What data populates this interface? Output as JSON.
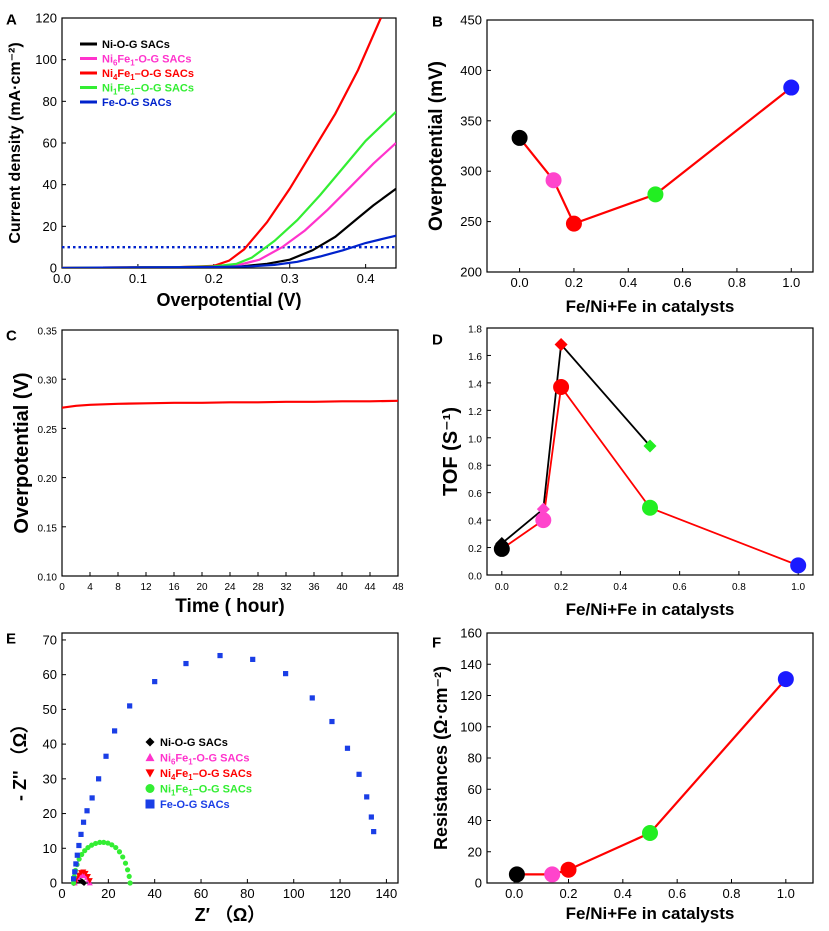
{
  "figure": {
    "panel_letters": [
      "A",
      "B",
      "C",
      "D",
      "E",
      "F"
    ]
  },
  "chart_data": [
    {
      "panel": "A",
      "type": "line",
      "title": "",
      "xlabel": "Overpotential (V)",
      "ylabel": "Current density (mA·cm⁻²)",
      "xlim": [
        0.0,
        0.44
      ],
      "ylim": [
        0,
        120
      ],
      "xticks": [
        "0.0",
        "0.1",
        "0.2",
        "0.3",
        "0.4"
      ],
      "yticks": [
        "0",
        "20",
        "40",
        "60",
        "80",
        "100",
        "120"
      ],
      "x_tick_values": [
        0.0,
        0.1,
        0.2,
        0.3,
        0.4
      ],
      "y_tick_values": [
        0,
        20,
        40,
        60,
        80,
        100,
        120
      ],
      "legend_position": "top-left",
      "series": [
        {
          "name": "Ni-O-G SACs",
          "legend": [
            [
              "Ni-O-G SACs",
              ""
            ]
          ],
          "color": "#000000",
          "x": [
            0.0,
            0.05,
            0.1,
            0.15,
            0.2,
            0.24,
            0.27,
            0.3,
            0.33,
            0.36,
            0.39,
            0.41,
            0.44
          ],
          "y": [
            0,
            0.2,
            0.3,
            0.4,
            0.5,
            0.9,
            2.0,
            4.0,
            8.5,
            15,
            24,
            30,
            38
          ]
        },
        {
          "name": "Ni6Fe1-O-G SACs",
          "legend": [
            [
              "Ni",
              ""
            ],
            [
              "6",
              "sub"
            ],
            [
              "Fe",
              ""
            ],
            [
              "1",
              "sub"
            ],
            [
              "-O-G SACs",
              ""
            ]
          ],
          "color": "#ff33cc",
          "x": [
            0.0,
            0.05,
            0.1,
            0.15,
            0.2,
            0.23,
            0.26,
            0.29,
            0.32,
            0.35,
            0.38,
            0.41,
            0.44
          ],
          "y": [
            0,
            0.2,
            0.3,
            0.4,
            0.6,
            1.2,
            4,
            10,
            18,
            28,
            39,
            50,
            60
          ]
        },
        {
          "name": "Ni4Fe1–O-G SACs",
          "legend": [
            [
              "Ni",
              ""
            ],
            [
              "4",
              "sub"
            ],
            [
              "Fe",
              ""
            ],
            [
              "1",
              "sub"
            ],
            [
              "–O-G SACs",
              ""
            ]
          ],
          "color": "#ff0000",
          "x": [
            0.0,
            0.05,
            0.1,
            0.15,
            0.2,
            0.22,
            0.24,
            0.27,
            0.3,
            0.33,
            0.36,
            0.39,
            0.42
          ],
          "y": [
            0,
            0.2,
            0.3,
            0.4,
            1.0,
            3.5,
            9,
            22,
            38,
            56,
            74,
            95,
            120
          ]
        },
        {
          "name": "Ni1Fe1–O-G SACs",
          "legend": [
            [
              "Ni",
              ""
            ],
            [
              "1",
              "sub"
            ],
            [
              "Fe",
              ""
            ],
            [
              "1",
              "sub"
            ],
            [
              "–O-G SACs",
              ""
            ]
          ],
          "color": "#33ee33",
          "x": [
            0.0,
            0.05,
            0.1,
            0.15,
            0.2,
            0.23,
            0.25,
            0.28,
            0.31,
            0.34,
            0.37,
            0.4,
            0.44
          ],
          "y": [
            0,
            0.2,
            0.3,
            0.4,
            0.8,
            2.0,
            5,
            13,
            23,
            35,
            48,
            61,
            75
          ]
        },
        {
          "name": "Fe-O-G SACs",
          "legend": [
            [
              "Fe-O-G SACs",
              ""
            ]
          ],
          "color": "#0022cc",
          "x": [
            0.0,
            0.05,
            0.1,
            0.15,
            0.2,
            0.25,
            0.28,
            0.31,
            0.34,
            0.37,
            0.4,
            0.44
          ],
          "y": [
            0,
            0.2,
            0.3,
            0.4,
            0.5,
            0.8,
            1.5,
            3.0,
            5.5,
            8.5,
            12,
            15.5
          ]
        }
      ],
      "reference_line": {
        "y": 10,
        "style": "dotted",
        "color": "#0022cc"
      }
    },
    {
      "panel": "B",
      "type": "line",
      "title": "",
      "xlabel": "Fe/Ni+Fe in catalysts",
      "ylabel": "Overpotential (mV)",
      "xlim": [
        -0.12,
        1.08
      ],
      "ylim": [
        200,
        450
      ],
      "xticks": [
        "0.0",
        "0.2",
        "0.4",
        "0.6",
        "0.8",
        "1.0"
      ],
      "yticks": [
        "200",
        "250",
        "300",
        "350",
        "400",
        "450"
      ],
      "x_tick_values": [
        0.0,
        0.2,
        0.4,
        0.6,
        0.8,
        1.0
      ],
      "y_tick_values": [
        200,
        250,
        300,
        350,
        400,
        450
      ],
      "line_color": "#ff0000",
      "points": [
        {
          "x": 0.0,
          "y": 333,
          "color": "#000000"
        },
        {
          "x": 0.125,
          "y": 291,
          "color": "#ff44cc"
        },
        {
          "x": 0.2,
          "y": 248,
          "color": "#ff0000"
        },
        {
          "x": 0.5,
          "y": 277,
          "color": "#22ee22"
        },
        {
          "x": 1.0,
          "y": 383,
          "color": "#1a1aff"
        }
      ]
    },
    {
      "panel": "C",
      "type": "line",
      "title": "",
      "xlabel": "Time ( hour)",
      "ylabel": "Overpotential (V)",
      "xlim": [
        0,
        48
      ],
      "ylim": [
        0.1,
        0.35
      ],
      "xticks": [
        "0",
        "4",
        "8",
        "12",
        "16",
        "20",
        "24",
        "28",
        "32",
        "36",
        "40",
        "44",
        "48"
      ],
      "yticks": [
        "0.10",
        "0.15",
        "0.20",
        "0.25",
        "0.30",
        "0.35"
      ],
      "x_tick_values": [
        0,
        4,
        8,
        12,
        16,
        20,
        24,
        28,
        32,
        36,
        40,
        44,
        48
      ],
      "y_tick_values": [
        0.1,
        0.15,
        0.2,
        0.25,
        0.3,
        0.35
      ],
      "series": [
        {
          "name": "Ni4Fe1–O-G SACs",
          "color": "#ff0000",
          "x": [
            0,
            2,
            4,
            8,
            12,
            16,
            20,
            24,
            28,
            32,
            36,
            40,
            44,
            48
          ],
          "y": [
            0.271,
            0.273,
            0.274,
            0.275,
            0.2755,
            0.276,
            0.276,
            0.2765,
            0.2765,
            0.277,
            0.277,
            0.2775,
            0.2775,
            0.278
          ]
        }
      ]
    },
    {
      "panel": "D",
      "type": "line",
      "title": "",
      "xlabel": "Fe/Ni+Fe in catalysts",
      "ylabel": "TOF (S⁻¹)",
      "xlim": [
        -0.05,
        1.05
      ],
      "ylim": [
        0.0,
        1.8
      ],
      "xticks": [
        "0.0",
        "0.2",
        "0.4",
        "0.6",
        "0.8",
        "1.0"
      ],
      "yticks": [
        "0.0",
        "0.2",
        "0.4",
        "0.6",
        "0.8",
        "1.0",
        "1.2",
        "1.4",
        "1.6",
        "1.8"
      ],
      "x_tick_values": [
        0.0,
        0.2,
        0.4,
        0.6,
        0.8,
        1.0
      ],
      "y_tick_values": [
        0.0,
        0.2,
        0.4,
        0.6,
        0.8,
        1.0,
        1.2,
        1.4,
        1.6,
        1.8
      ],
      "series": [
        {
          "name": "TOF (diamonds)",
          "marker": "diamond",
          "line_color": "#000000",
          "points": [
            {
              "x": 0.0,
              "y": 0.23,
              "color": "#000000"
            },
            {
              "x": 0.14,
              "y": 0.48,
              "color": "#ff44cc"
            },
            {
              "x": 0.2,
              "y": 1.68,
              "color": "#ff0000"
            },
            {
              "x": 0.5,
              "y": 0.94,
              "color": "#22ee22"
            }
          ]
        },
        {
          "name": "TOF (circles)",
          "marker": "circle",
          "line_color": "#ff0000",
          "points": [
            {
              "x": 0.0,
              "y": 0.19,
              "color": "#000000"
            },
            {
              "x": 0.14,
              "y": 0.4,
              "color": "#ff44cc"
            },
            {
              "x": 0.2,
              "y": 1.37,
              "color": "#ff0000"
            },
            {
              "x": 0.5,
              "y": 0.49,
              "color": "#22ee22"
            },
            {
              "x": 1.0,
              "y": 0.07,
              "color": "#1a1aff"
            }
          ]
        }
      ]
    },
    {
      "panel": "E",
      "type": "scatter",
      "title": "",
      "xlabel": "Z′ （Ω）",
      "ylabel": "- Z'' （Ω）",
      "xlim": [
        0,
        145
      ],
      "ylim": [
        0,
        72
      ],
      "xticks": [
        "0",
        "20",
        "40",
        "60",
        "80",
        "100",
        "120",
        "140"
      ],
      "yticks": [
        "0",
        "10",
        "20",
        "30",
        "40",
        "50",
        "60",
        "70"
      ],
      "x_tick_values": [
        0,
        20,
        40,
        60,
        80,
        100,
        120,
        140
      ],
      "y_tick_values": [
        0,
        10,
        20,
        30,
        40,
        50,
        60,
        70
      ],
      "legend_position": "center-left",
      "series": [
        {
          "name": "Ni-O-G SACs",
          "legend": [
            [
              "Ni-O-G SACs",
              ""
            ]
          ],
          "marker": "diamond",
          "color": "#000000",
          "x": [
            5.0,
            5.5,
            6.2,
            7.0,
            7.8,
            8.5,
            9.0,
            9.5
          ],
          "y": [
            0.0,
            0.4,
            0.7,
            0.8,
            0.7,
            0.5,
            0.3,
            0.0
          ]
        },
        {
          "name": "Ni6Fe1-O-G SACs",
          "legend": [
            [
              "Ni",
              ""
            ],
            [
              "6",
              "sub"
            ],
            [
              "Fe",
              ""
            ],
            [
              "1",
              "sub"
            ],
            [
              "-O-G SACs",
              ""
            ]
          ],
          "marker": "triangle-up",
          "color": "#ff33cc",
          "x": [
            5.5,
            6.0,
            6.8,
            7.8,
            8.8,
            9.8,
            10.8,
            11.5,
            12.0
          ],
          "y": [
            0.0,
            0.9,
            1.6,
            2.1,
            2.3,
            2.1,
            1.6,
            0.9,
            0.0
          ]
        },
        {
          "name": "Ni4Fe1–O-G SACs",
          "legend": [
            [
              "Ni",
              ""
            ],
            [
              "4",
              "sub"
            ],
            [
              "Fe",
              ""
            ],
            [
              "1",
              "sub"
            ],
            [
              "–O-G SACs",
              ""
            ]
          ],
          "marker": "triangle-down",
          "color": "#ff0000",
          "x": [
            5.5,
            6.2,
            7.2,
            8.2,
            9.2,
            10.2,
            11.2,
            12.0
          ],
          "y": [
            0.0,
            1.3,
            2.3,
            3.0,
            3.2,
            2.8,
            1.9,
            0.7
          ]
        },
        {
          "name": "Ni1Fe1–O-G SACs",
          "legend": [
            [
              "Ni",
              ""
            ],
            [
              "1",
              "sub"
            ],
            [
              "Fe",
              ""
            ],
            [
              "1",
              "sub"
            ],
            [
              "–O-G SACs",
              ""
            ]
          ],
          "marker": "circle",
          "color": "#33ee33",
          "x": [
            5.0,
            5.3,
            5.8,
            6.5,
            7.4,
            8.5,
            9.8,
            11.2,
            12.8,
            14.5,
            16.3,
            18.0,
            19.8,
            21.5,
            23.2,
            24.8,
            26.2,
            27.4,
            28.3,
            29.0,
            29.4
          ],
          "y": [
            0.0,
            1.8,
            3.6,
            5.3,
            6.9,
            8.2,
            9.3,
            10.2,
            10.9,
            11.4,
            11.7,
            11.7,
            11.5,
            11.0,
            10.2,
            9.0,
            7.5,
            5.7,
            3.8,
            1.9,
            0.0
          ]
        },
        {
          "name": "Fe-O-G SACs",
          "legend": [
            [
              "Fe-O-G SACs",
              ""
            ]
          ],
          "marker": "square",
          "color": "#1a3ee6",
          "x": [
            5.0,
            5.5,
            6.0,
            6.6,
            7.3,
            8.2,
            9.3,
            10.8,
            13.0,
            15.8,
            19.0,
            22.7,
            29.2,
            40.0,
            53.5,
            68.2,
            82.3,
            96.5,
            108.0,
            116.5,
            123.2,
            128.2,
            131.5,
            133.5,
            134.5
          ],
          "y": [
            1.2,
            3.2,
            5.5,
            8.0,
            10.8,
            14.0,
            17.5,
            20.8,
            24.5,
            30.0,
            36.5,
            43.8,
            51.0,
            58.0,
            63.2,
            65.5,
            64.4,
            60.3,
            53.3,
            46.5,
            38.8,
            31.3,
            24.8,
            19.0,
            14.8
          ]
        }
      ]
    },
    {
      "panel": "F",
      "type": "line",
      "title": "",
      "xlabel": "Fe/Ni+Fe in catalysts",
      "ylabel": "Resistances (Ω·cm⁻²)",
      "xlim": [
        -0.1,
        1.1
      ],
      "ylim": [
        0,
        160
      ],
      "xticks": [
        "0.0",
        "0.2",
        "0.4",
        "0.6",
        "0.8",
        "1.0"
      ],
      "yticks": [
        "0",
        "20",
        "40",
        "60",
        "80",
        "100",
        "120",
        "140",
        "160"
      ],
      "x_tick_values": [
        0.0,
        0.2,
        0.4,
        0.6,
        0.8,
        1.0
      ],
      "y_tick_values": [
        0,
        20,
        40,
        60,
        80,
        100,
        120,
        140,
        160
      ],
      "line_color": "#ff0000",
      "points": [
        {
          "x": 0.01,
          "y": 5.5,
          "color": "#000000"
        },
        {
          "x": 0.14,
          "y": 5.5,
          "color": "#ff44cc"
        },
        {
          "x": 0.2,
          "y": 8.5,
          "color": "#ff0000"
        },
        {
          "x": 0.5,
          "y": 32,
          "color": "#22ee22"
        },
        {
          "x": 1.0,
          "y": 130.5,
          "color": "#1a1aff"
        }
      ]
    }
  ]
}
